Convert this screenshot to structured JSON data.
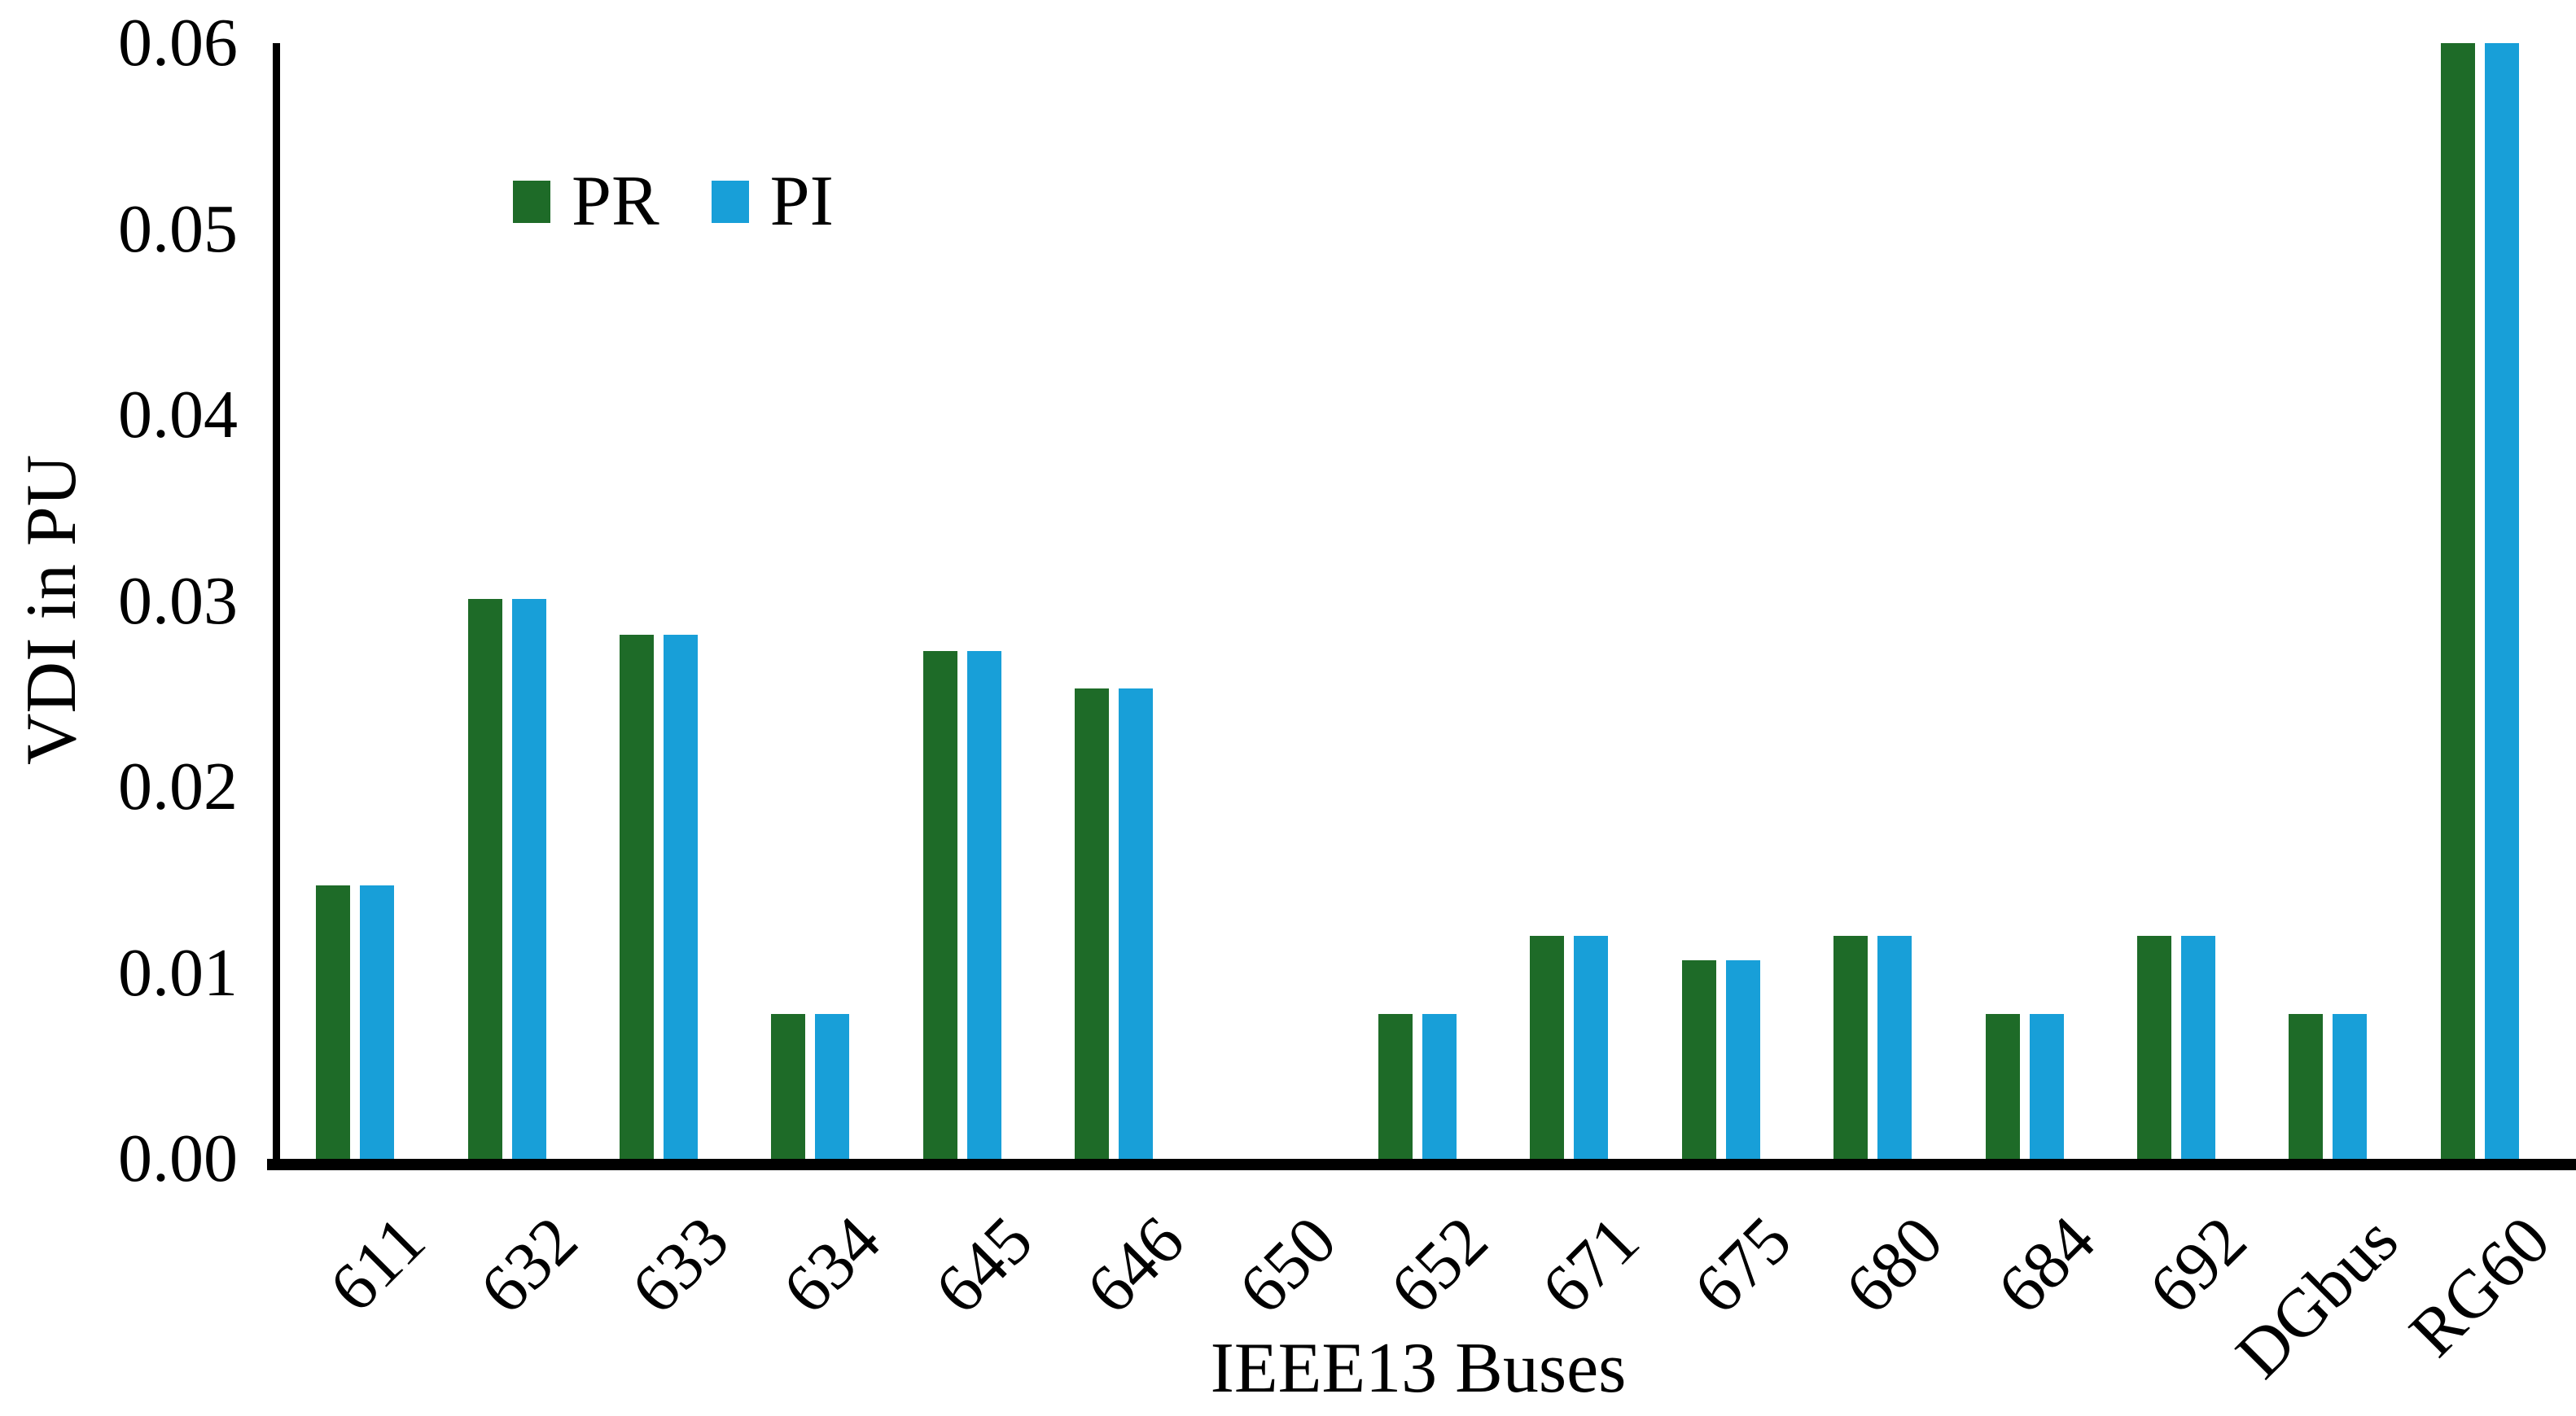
{
  "chart_data": {
    "type": "bar",
    "title": "",
    "xlabel": "IEEE13 Buses",
    "ylabel": "VDI in PU",
    "categories": [
      "611",
      "632",
      "633",
      "634",
      "645",
      "646",
      "650",
      "652",
      "671",
      "675",
      "680",
      "684",
      "692",
      "DGbus",
      "RG60"
    ],
    "series": [
      {
        "name": "PR",
        "color": "#1e6b28",
        "values": [
          0.0147,
          0.0301,
          0.0282,
          0.0078,
          0.0273,
          0.0253,
          0,
          0.0078,
          0.012,
          0.0107,
          0.012,
          0.0078,
          0.012,
          0.0078,
          0.06
        ]
      },
      {
        "name": "PI",
        "color": "#189fd8",
        "values": [
          0.0147,
          0.0301,
          0.0282,
          0.0078,
          0.0273,
          0.0253,
          0,
          0.0078,
          0.012,
          0.0107,
          0.012,
          0.0078,
          0.012,
          0.0078,
          0.06
        ]
      }
    ],
    "ylim": [
      0,
      0.06
    ],
    "yticks": [
      "0.00",
      "0.01",
      "0.02",
      "0.03",
      "0.04",
      "0.05",
      "0.06"
    ],
    "grid": false,
    "legend_position": "inside-upper-left",
    "axis_color": "#000000",
    "background_color": "#ffffff"
  }
}
